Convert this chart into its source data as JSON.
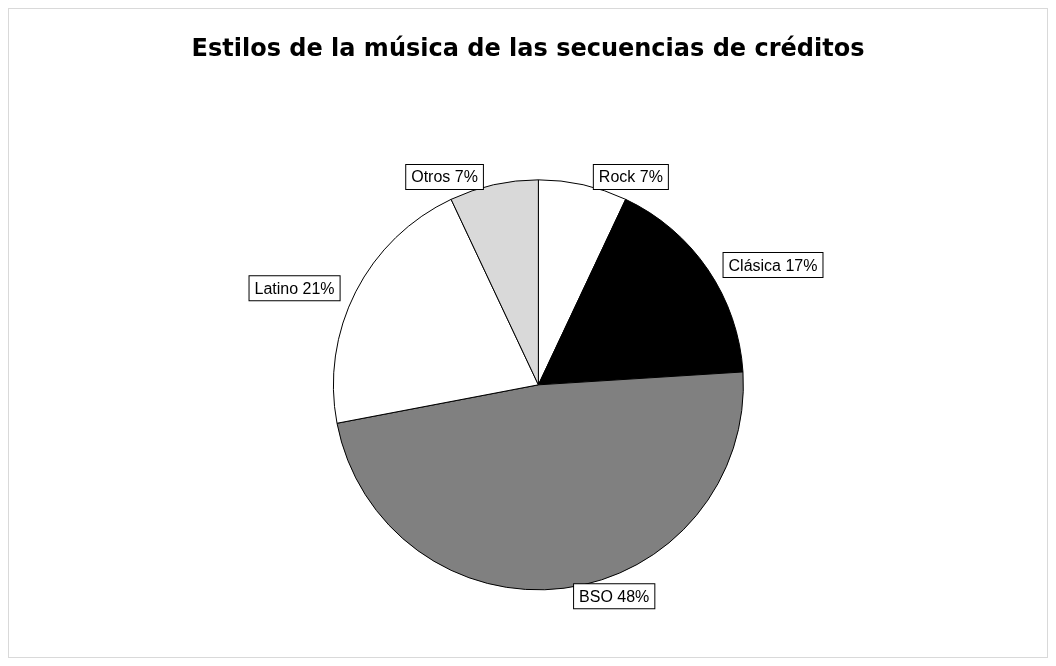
{
  "chart_data": {
    "type": "pie",
    "title": "Estilos de la música de las secuencias de créditos",
    "categories": [
      "Rock",
      "Clásica",
      "BSO",
      "Latino",
      "Otros"
    ],
    "values": [
      7,
      17,
      48,
      21,
      7
    ],
    "colors": [
      "#ffffff",
      "#000000",
      "#808080",
      "#ffffff",
      "#d9d9d9"
    ],
    "value_labels": [
      "7%",
      "17%",
      "48%",
      "21%",
      "7%"
    ],
    "legend": false
  }
}
